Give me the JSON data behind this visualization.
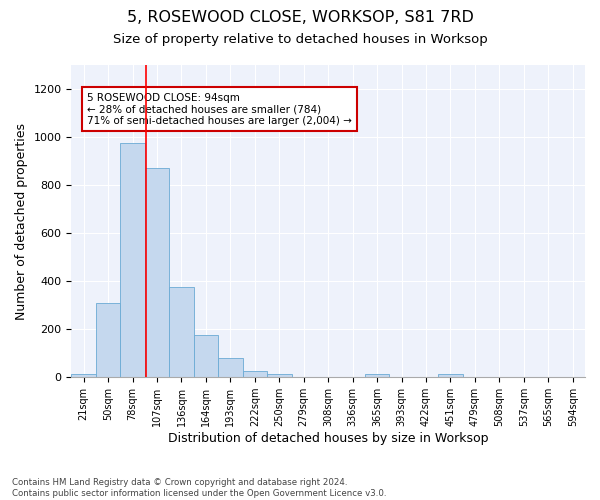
{
  "title": "5, ROSEWOOD CLOSE, WORKSOP, S81 7RD",
  "subtitle": "Size of property relative to detached houses in Worksop",
  "xlabel": "Distribution of detached houses by size in Worksop",
  "ylabel": "Number of detached properties",
  "categories": [
    "21sqm",
    "50sqm",
    "78sqm",
    "107sqm",
    "136sqm",
    "164sqm",
    "193sqm",
    "222sqm",
    "250sqm",
    "279sqm",
    "308sqm",
    "336sqm",
    "365sqm",
    "393sqm",
    "422sqm",
    "451sqm",
    "479sqm",
    "508sqm",
    "537sqm",
    "565sqm",
    "594sqm"
  ],
  "values": [
    15,
    310,
    975,
    870,
    375,
    175,
    80,
    25,
    15,
    0,
    0,
    0,
    12,
    0,
    0,
    12,
    0,
    0,
    0,
    0,
    0
  ],
  "bar_color": "#c5d8ee",
  "bar_edge_color": "#6aaad4",
  "annotation_text": "5 ROSEWOOD CLOSE: 94sqm\n← 28% of detached houses are smaller (784)\n71% of semi-detached houses are larger (2,004) →",
  "annotation_box_color": "#ffffff",
  "annotation_box_edge_color": "#cc0000",
  "ylim": [
    0,
    1300
  ],
  "yticks": [
    0,
    200,
    400,
    600,
    800,
    1000,
    1200
  ],
  "background_color": "#eef2fb",
  "footer_text": "Contains HM Land Registry data © Crown copyright and database right 2024.\nContains public sector information licensed under the Open Government Licence v3.0.",
  "title_fontsize": 11.5,
  "subtitle_fontsize": 9.5,
  "xlabel_fontsize": 9,
  "ylabel_fontsize": 9
}
